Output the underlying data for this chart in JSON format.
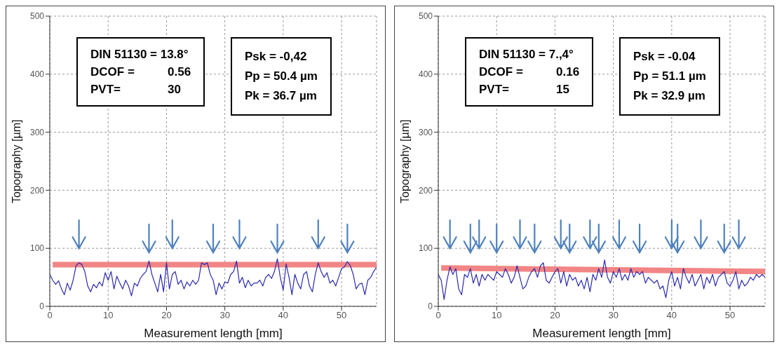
{
  "chart_data": [
    {
      "type": "line",
      "xlabel": "Measurement length [mm]",
      "ylabel": "Topography [µm]",
      "annotations": [
        "DIN 51130 = 13.8°",
        "DCOF =",
        "0.56",
        "PVT=",
        "30",
        "Psk = -0,42",
        "Pp = 50.4 µm",
        "Pk = 36.7 µm"
      ],
      "xlim": [
        0,
        56
      ],
      "ylim": [
        0,
        500
      ],
      "xticks": [
        0,
        10,
        20,
        30,
        40,
        50
      ],
      "yticks": [
        0,
        100,
        200,
        300,
        400,
        500
      ],
      "grid": true,
      "series": [
        {
          "color": "#2a2ab0",
          "x": [
            0,
            0.5,
            1,
            1.5,
            2,
            2.5,
            3,
            3.5,
            4,
            4.5,
            5,
            5.5,
            6,
            6.5,
            7,
            7.5,
            8,
            8.5,
            9,
            9.5,
            10,
            10.5,
            11,
            11.5,
            12,
            12.5,
            13,
            13.5,
            14,
            14.5,
            15,
            15.5,
            16,
            16.5,
            17,
            17.5,
            18,
            18.5,
            19,
            19.5,
            20,
            20.5,
            21,
            21.5,
            22,
            22.5,
            23,
            23.5,
            24,
            24.5,
            25,
            25.5,
            26,
            26.5,
            27,
            27.5,
            28,
            28.5,
            29,
            29.5,
            30,
            30.5,
            31,
            31.5,
            32,
            32.5,
            33,
            33.5,
            34,
            34.5,
            35,
            35.5,
            36,
            36.5,
            37,
            37.5,
            38,
            38.5,
            39,
            39.5,
            40,
            40.5,
            41,
            41.5,
            42,
            42.5,
            43,
            43.5,
            44,
            44.5,
            45,
            45.5,
            46,
            46.5,
            47,
            47.5,
            48,
            48.5,
            49,
            49.5,
            50,
            50.5,
            51,
            51.5,
            52,
            52.5,
            53,
            53.5,
            54,
            54.5,
            55,
            55.5,
            56
          ],
          "values": [
            55,
            45,
            38,
            44,
            30,
            20,
            40,
            28,
            45,
            70,
            75,
            72,
            60,
            35,
            25,
            38,
            32,
            42,
            35,
            58,
            45,
            60,
            30,
            52,
            40,
            30,
            45,
            35,
            18,
            40,
            35,
            48,
            55,
            60,
            78,
            55,
            40,
            25,
            55,
            25,
            75,
            30,
            55,
            60,
            38,
            45,
            30,
            42,
            35,
            45,
            38,
            45,
            75,
            72,
            75,
            55,
            45,
            20,
            40,
            30,
            42,
            40,
            55,
            60,
            78,
            40,
            50,
            32,
            45,
            35,
            40,
            40,
            45,
            35,
            50,
            55,
            48,
            60,
            82,
            50,
            28,
            73,
            50,
            20,
            55,
            40,
            30,
            55,
            60,
            35,
            25,
            55,
            75,
            60,
            50,
            58,
            40,
            45,
            35,
            50,
            65,
            68,
            77,
            70,
            55,
            30,
            38,
            40,
            20,
            45,
            50,
            60,
            68
          ]
        },
        {
          "color": "#f28585",
          "x": [
            0.5,
            56
          ],
          "values": [
            72,
            72
          ]
        }
      ]
    },
    {
      "type": "line",
      "xlabel": "Measurement length [mm]",
      "ylabel": "Topography [µm]",
      "annotations": [
        "DIN 51130 = 7.,4°",
        "DCOF =",
        "0.16",
        "PVT=",
        "15",
        "Psk = -0.04",
        "Pp = 51.1 µm",
        "Pk = 32.9 µm"
      ],
      "xlim": [
        0,
        56
      ],
      "ylim": [
        0,
        500
      ],
      "xticks": [
        0,
        10,
        20,
        30,
        40,
        50
      ],
      "yticks": [
        0,
        100,
        200,
        300,
        400,
        500
      ],
      "grid": true,
      "series": [
        {
          "color": "#2a2ab0",
          "x": [
            0,
            0.5,
            1,
            1.5,
            2,
            2.5,
            3,
            3.5,
            4,
            4.5,
            5,
            5.5,
            6,
            6.5,
            7,
            7.5,
            8,
            8.5,
            9,
            9.5,
            10,
            10.5,
            11,
            11.5,
            12,
            12.5,
            13,
            13.5,
            14,
            14.5,
            15,
            15.5,
            16,
            16.5,
            17,
            17.5,
            18,
            18.5,
            19,
            19.5,
            20,
            20.5,
            21,
            21.5,
            22,
            22.5,
            23,
            23.5,
            24,
            24.5,
            25,
            25.5,
            26,
            26.5,
            27,
            27.5,
            28,
            28.5,
            29,
            29.5,
            30,
            30.5,
            31,
            31.5,
            32,
            32.5,
            33,
            33.5,
            34,
            34.5,
            35,
            35.5,
            36,
            36.5,
            37,
            37.5,
            38,
            38.5,
            39,
            39.5,
            40,
            40.5,
            41,
            41.5,
            42,
            42.5,
            43,
            43.5,
            44,
            44.5,
            45,
            45.5,
            46,
            46.5,
            47,
            47.5,
            48,
            48.5,
            49,
            49.5,
            50,
            50.5,
            51,
            51.5,
            52,
            52.5,
            53,
            53.5,
            54,
            54.5,
            55,
            55.5,
            56
          ],
          "values": [
            55,
            45,
            12,
            45,
            68,
            55,
            65,
            30,
            20,
            55,
            50,
            65,
            40,
            55,
            35,
            55,
            45,
            55,
            50,
            45,
            60,
            55,
            50,
            65,
            55,
            40,
            50,
            70,
            50,
            30,
            35,
            50,
            60,
            65,
            50,
            70,
            75,
            45,
            40,
            50,
            60,
            65,
            40,
            60,
            35,
            55,
            45,
            50,
            35,
            45,
            30,
            50,
            25,
            55,
            45,
            65,
            50,
            80,
            50,
            40,
            60,
            50,
            65,
            45,
            55,
            45,
            65,
            50,
            60,
            55,
            60,
            40,
            50,
            45,
            40,
            45,
            30,
            35,
            15,
            45,
            60,
            35,
            50,
            30,
            65,
            50,
            40,
            55,
            35,
            45,
            55,
            30,
            50,
            40,
            55,
            35,
            50,
            55,
            60,
            40,
            35,
            45,
            60,
            30,
            45,
            35,
            40,
            50,
            45,
            55,
            50,
            55,
            50
          ]
        },
        {
          "color": "#f28585",
          "x": [
            0.5,
            56
          ],
          "values": [
            66,
            60
          ]
        }
      ]
    }
  ]
}
